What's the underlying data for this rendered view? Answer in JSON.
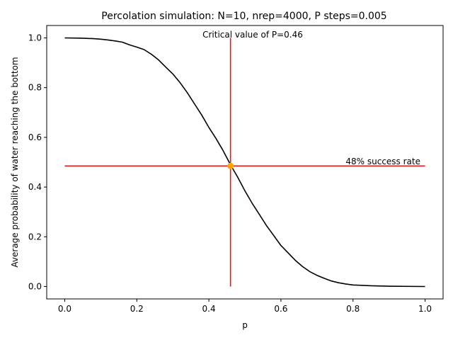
{
  "chart_data": {
    "type": "line",
    "title": "Percolation simulation: N=10, nrep=4000, P steps=0.005",
    "xlabel": "p",
    "ylabel": "Average probability of water reaching the bottom",
    "xlim": [
      -0.05,
      1.05
    ],
    "ylim": [
      -0.05,
      1.05
    ],
    "xticks": [
      0.0,
      0.2,
      0.4,
      0.6,
      0.8,
      1.0
    ],
    "xtick_labels": [
      "0.0",
      "0.2",
      "0.4",
      "0.6",
      "0.8",
      "1.0"
    ],
    "yticks": [
      0.0,
      0.2,
      0.4,
      0.6,
      0.8,
      1.0
    ],
    "ytick_labels": [
      "0.0",
      "0.2",
      "0.4",
      "0.6",
      "0.8",
      "1.0"
    ],
    "grid": false,
    "legend": "none",
    "series": [
      {
        "color": "#000000",
        "x": [
          0.0,
          0.05,
          0.08,
          0.1,
          0.12,
          0.14,
          0.16,
          0.18,
          0.2,
          0.22,
          0.24,
          0.26,
          0.28,
          0.3,
          0.32,
          0.34,
          0.36,
          0.38,
          0.4,
          0.42,
          0.44,
          0.46,
          0.48,
          0.5,
          0.52,
          0.54,
          0.56,
          0.58,
          0.6,
          0.62,
          0.64,
          0.66,
          0.68,
          0.7,
          0.72,
          0.74,
          0.76,
          0.78,
          0.8,
          0.85,
          0.9,
          1.0
        ],
        "y": [
          1.0,
          0.999,
          0.997,
          0.995,
          0.992,
          0.988,
          0.983,
          0.972,
          0.963,
          0.953,
          0.935,
          0.912,
          0.883,
          0.855,
          0.82,
          0.78,
          0.735,
          0.69,
          0.64,
          0.595,
          0.545,
          0.49,
          0.44,
          0.385,
          0.335,
          0.29,
          0.245,
          0.205,
          0.165,
          0.135,
          0.105,
          0.08,
          0.06,
          0.045,
          0.033,
          0.022,
          0.015,
          0.01,
          0.006,
          0.003,
          0.001,
          0.0
        ]
      }
    ],
    "annotations": {
      "vline": {
        "x": 0.46,
        "y_range": [
          0.0,
          1.0
        ],
        "color": "#e31a1c"
      },
      "hline": {
        "y": 0.485,
        "x_range": [
          0.0,
          1.0
        ],
        "color": "#e31a1c"
      },
      "point": {
        "x": 0.46,
        "y": 0.485,
        "color": "#ffa500"
      },
      "critical_label": "Critical value of P=0.46",
      "success_label": "48% success rate"
    }
  }
}
